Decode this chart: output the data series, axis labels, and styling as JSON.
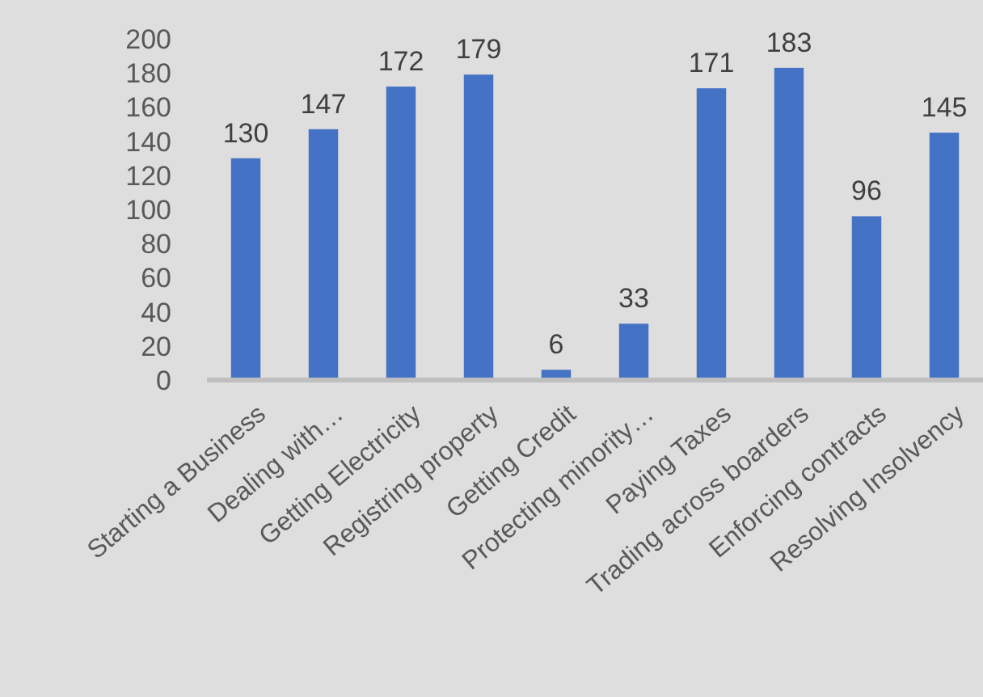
{
  "chart_data": {
    "type": "bar",
    "categories": [
      "Starting a Business",
      "Dealing with…",
      "Getting Electricity",
      "Registring property",
      "Getting Credit",
      "Protecting minority…",
      "Paying Taxes",
      "Trading across boarders",
      "Enforcing contracts",
      "Resolving Insolvency"
    ],
    "values": [
      130,
      147,
      172,
      179,
      6,
      33,
      171,
      183,
      96,
      145
    ],
    "color": "#4472c4",
    "ylim": [
      0,
      200
    ],
    "yticks": [
      0,
      20,
      40,
      60,
      80,
      100,
      120,
      140,
      160,
      180,
      200
    ],
    "data_labels": true,
    "grid": false
  }
}
